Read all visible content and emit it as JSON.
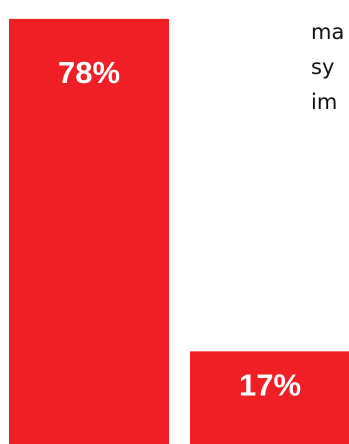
{
  "chart_data": {
    "type": "bar",
    "categories": [
      "",
      ""
    ],
    "values": [
      78,
      17
    ],
    "value_labels": [
      "78%",
      "17%"
    ],
    "ylim": [
      0,
      80
    ],
    "title": "",
    "xlabel": "",
    "ylabel": "",
    "grid": false,
    "legend": "none",
    "bar_color": "#ef1f25",
    "label_color": "#ffffff"
  },
  "side_text": {
    "lines": [
      "ma",
      "sy",
      "im"
    ]
  }
}
